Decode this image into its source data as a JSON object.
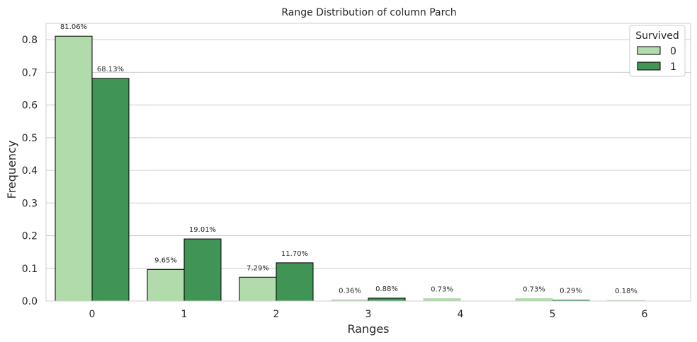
{
  "chart_data": {
    "type": "bar",
    "title": "Range Distribution of column Parch",
    "xlabel": "Ranges",
    "ylabel": "Frequency",
    "categories": [
      "0",
      "1",
      "2",
      "3",
      "4",
      "5",
      "6"
    ],
    "ylim": [
      0,
      0.85
    ],
    "yticks": [
      "0.0",
      "0.1",
      "0.2",
      "0.3",
      "0.4",
      "0.5",
      "0.6",
      "0.7",
      "0.8"
    ],
    "grid": "horizontal",
    "legend": {
      "title": "Survived",
      "placement": "top-right"
    },
    "series": [
      {
        "name": "0",
        "color": "#b2dbab",
        "values": [
          0.8106,
          0.0965,
          0.0729,
          0.0036,
          0.0073,
          0.0073,
          0.0018
        ],
        "labels": [
          "81.06%",
          "9.65%",
          "7.29%",
          "0.36%",
          "0.73%",
          "0.73%",
          "0.18%"
        ]
      },
      {
        "name": "1",
        "color": "#3f9456",
        "values": [
          0.6813,
          0.1901,
          0.117,
          0.0088,
          0,
          0.0029,
          0
        ],
        "labels": [
          "68.13%",
          "19.01%",
          "11.70%",
          "0.88%",
          "",
          "0.29%",
          ""
        ]
      }
    ]
  }
}
